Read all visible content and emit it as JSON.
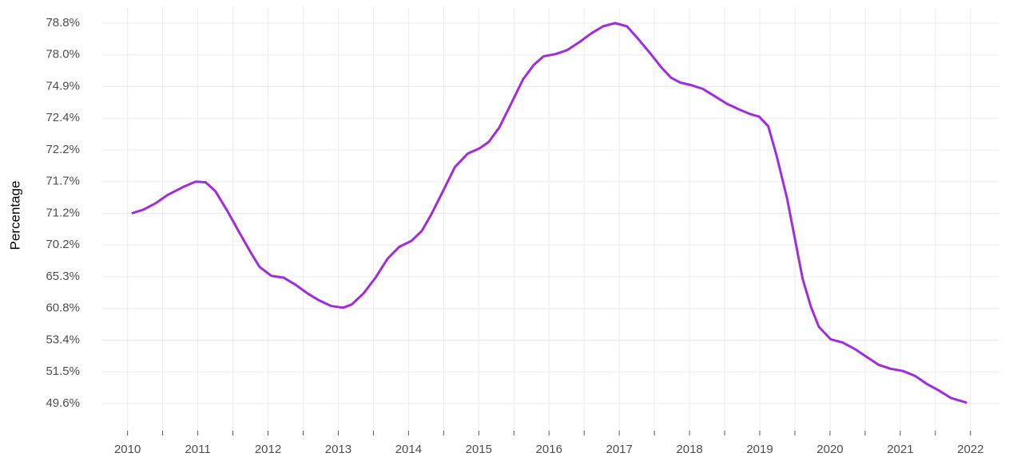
{
  "chart_data": {
    "type": "line",
    "y_label": "Percentage",
    "x": [
      2010.06,
      2010.23,
      2010.4,
      2010.57,
      2010.8,
      2010.97,
      2011.11,
      2011.25,
      2011.42,
      2011.59,
      2011.76,
      2011.88,
      2012.05,
      2012.22,
      2012.39,
      2012.56,
      2012.73,
      2012.9,
      2013.07,
      2013.19,
      2013.36,
      2013.53,
      2013.7,
      2013.87,
      2014.04,
      2014.19,
      2014.32,
      2014.49,
      2014.66,
      2014.84,
      2015.01,
      2015.14,
      2015.29,
      2015.46,
      2015.63,
      2015.78,
      2015.92,
      2016.09,
      2016.26,
      2016.43,
      2016.6,
      2016.77,
      2016.94,
      2017.11,
      2017.28,
      2017.45,
      2017.6,
      2017.74,
      2017.87,
      2018.02,
      2018.19,
      2018.36,
      2018.53,
      2018.7,
      2018.87,
      2018.99,
      2019.12,
      2019.24,
      2019.39,
      2019.5,
      2019.61,
      2019.73,
      2019.84,
      2020.01,
      2020.18,
      2020.35,
      2020.52,
      2020.69,
      2020.86,
      2021.04,
      2021.21,
      2021.38,
      2021.55,
      2021.72,
      2021.95
    ],
    "series": [
      {
        "name": "Percentage",
        "color": "#a02be0",
        "values": [
          71.2,
          71.26,
          71.36,
          71.49,
          71.62,
          71.7,
          71.69,
          71.55,
          71.24,
          70.6,
          68.94,
          66.8,
          65.43,
          65.18,
          64.18,
          62.94,
          61.93,
          61.14,
          60.91,
          61.36,
          62.94,
          65.18,
          68.06,
          69.95,
          70.33,
          70.65,
          71.15,
          71.55,
          71.93,
          72.14,
          72.21,
          72.25,
          72.34,
          73.55,
          75.6,
          77.0,
          77.85,
          78.02,
          78.12,
          78.32,
          78.54,
          78.72,
          78.8,
          78.72,
          78.38,
          78.02,
          76.76,
          75.75,
          75.28,
          75.05,
          74.71,
          74.13,
          73.55,
          73.11,
          72.72,
          72.53,
          72.35,
          72.11,
          71.43,
          70.4,
          65.0,
          61.0,
          56.55,
          53.6,
          53.26,
          52.88,
          52.4,
          51.93,
          51.69,
          51.55,
          51.26,
          50.77,
          50.38,
          49.94,
          49.65
        ]
      }
    ],
    "xlim": [
      2009.64,
      2022.4
    ],
    "xticks": [
      2010,
      2011,
      2012,
      2013,
      2014,
      2015,
      2016,
      2017,
      2018,
      2019,
      2020,
      2021,
      2022
    ],
    "ylim": [
      49.6,
      78.8
    ],
    "yticks": [
      {
        "value": 49.6,
        "label": "49.6%"
      },
      {
        "value": 51.5,
        "label": "51.5%"
      },
      {
        "value": 53.4,
        "label": "53.4%"
      },
      {
        "value": 60.8,
        "label": "60.8%"
      },
      {
        "value": 65.3,
        "label": "65.3%"
      },
      {
        "value": 70.2,
        "label": "70.2%"
      },
      {
        "value": 71.2,
        "label": "71.2%"
      },
      {
        "value": 71.7,
        "label": "71.7%"
      },
      {
        "value": 72.2,
        "label": "72.2%"
      },
      {
        "value": 72.4,
        "label": "72.4%"
      },
      {
        "value": 74.9,
        "label": "74.9%"
      },
      {
        "value": 78.0,
        "label": "78.0%"
      },
      {
        "value": 78.8,
        "label": "78.8%"
      }
    ],
    "grid": true
  }
}
